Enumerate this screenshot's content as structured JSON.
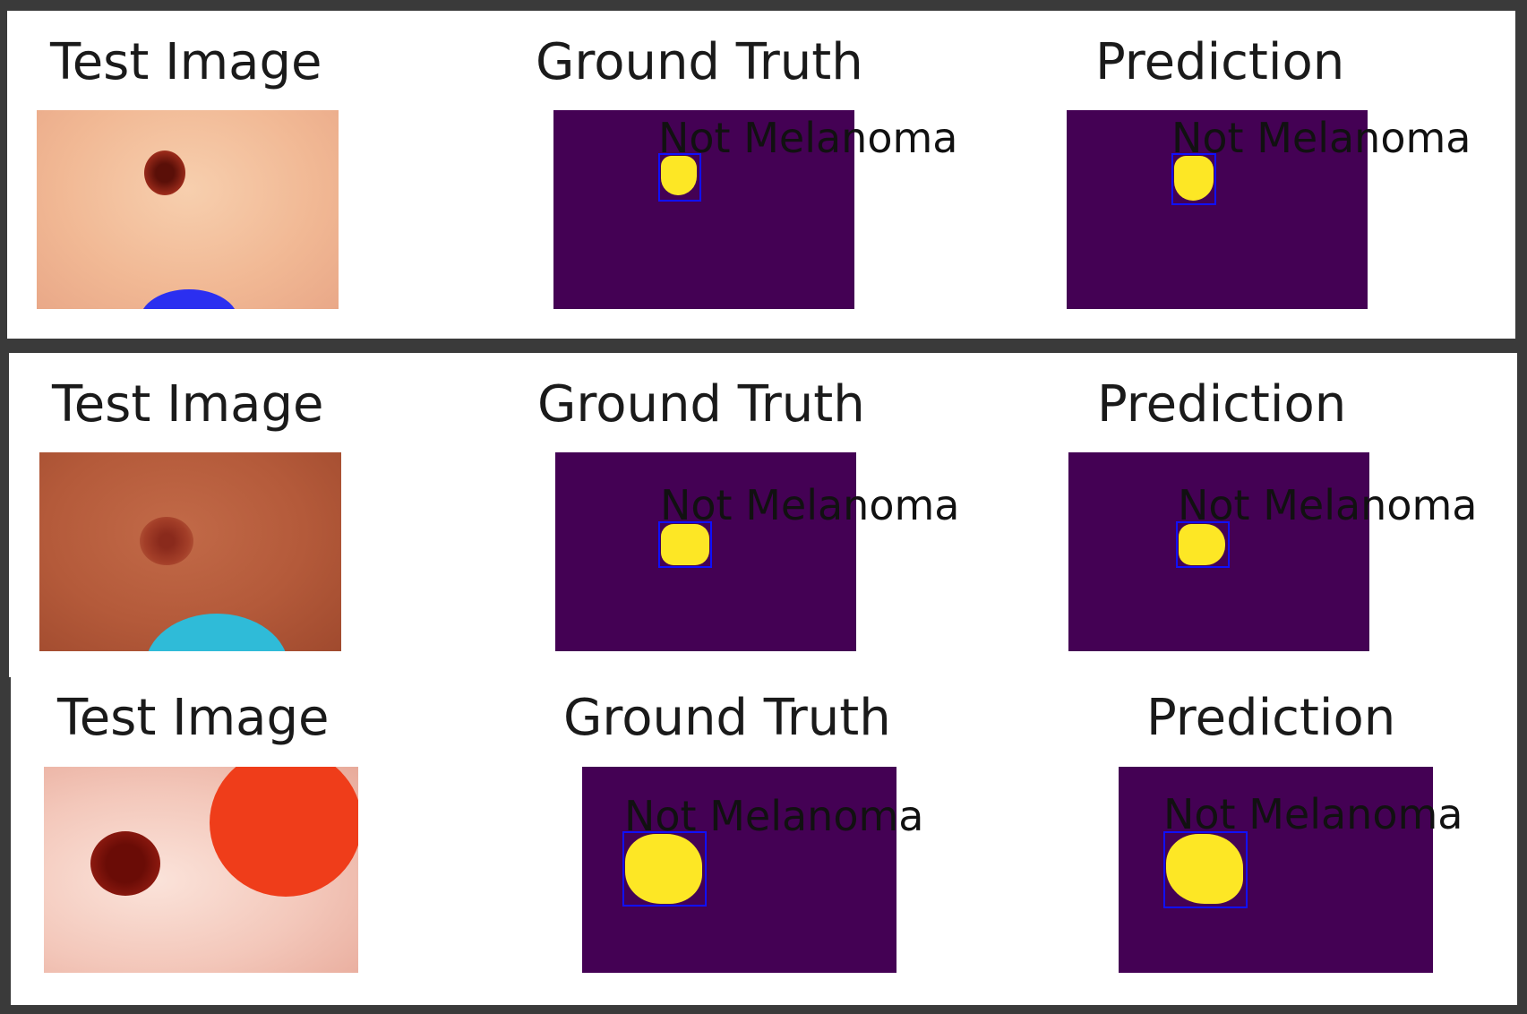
{
  "colors": {
    "mask_background": "#440154",
    "mask_lesion": "#fde725",
    "bbox": "#1010ff",
    "frame": "#3a3a3a"
  },
  "rows": [
    {
      "test_title": "Test Image",
      "truth_title": "Ground Truth",
      "pred_title": "Prediction",
      "truth_label": "Not Melanoma",
      "pred_label": "Not Melanoma"
    },
    {
      "test_title": "Test Image",
      "truth_title": "Ground Truth",
      "pred_title": "Prediction",
      "truth_label": "Not Melanoma",
      "pred_label": "Not Melanoma"
    },
    {
      "test_title": "Test Image",
      "truth_title": "Ground Truth",
      "pred_title": "Prediction",
      "truth_label": "Not Melanoma",
      "pred_label": "Not Melanoma"
    }
  ]
}
